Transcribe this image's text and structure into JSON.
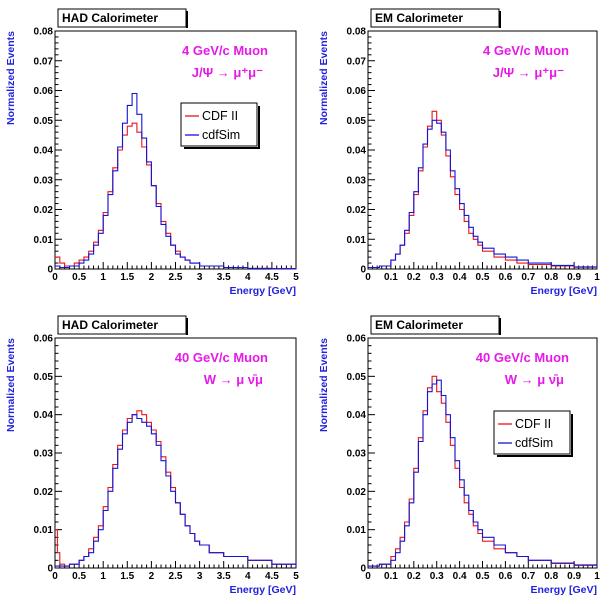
{
  "colors": {
    "cdf": "#e8141c",
    "sim": "#1414d8",
    "annotation": "#e818e8",
    "axis_title": "#2222dd",
    "axis": "#000000"
  },
  "chart_data": [
    {
      "type": "line",
      "title": "HAD Calorimeter",
      "annotation_lines": [
        "4 GeV/c Muon",
        "J/Ψ → μ⁺μ⁻"
      ],
      "xlabel": "Energy [GeV]",
      "ylabel": "Normalized Events",
      "xlim": [
        0,
        5
      ],
      "ylim": [
        0,
        0.08
      ],
      "xticks": [
        0,
        0.5,
        1,
        1.5,
        2,
        2.5,
        3,
        3.5,
        4,
        4.5,
        5
      ],
      "xtick_labels": [
        "0",
        "0.5",
        "1",
        "1.5",
        "2",
        "2.5",
        "3",
        "3.5",
        "4",
        "4.5",
        "5"
      ],
      "yticks": [
        0,
        0.01,
        0.02,
        0.03,
        0.04,
        0.05,
        0.06,
        0.07,
        0.08
      ],
      "ytick_labels": [
        "0",
        "0.01",
        "0.02",
        "0.03",
        "0.04",
        "0.05",
        "0.06",
        "0.07",
        "0.08"
      ],
      "legend": {
        "position": "right",
        "entries": [
          "CDF II",
          "cdfSim"
        ]
      },
      "grid": false,
      "series": [
        {
          "name": "CDF II",
          "x": [
            0,
            0.1,
            0.2,
            0.3,
            0.4,
            0.5,
            0.6,
            0.7,
            0.8,
            0.9,
            1.0,
            1.1,
            1.2,
            1.3,
            1.4,
            1.5,
            1.6,
            1.7,
            1.8,
            1.9,
            2.0,
            2.1,
            2.2,
            2.3,
            2.4,
            2.5,
            2.6,
            2.7,
            2.8,
            2.9,
            3.0,
            3.2,
            3.5,
            4.0,
            4.5,
            5.0
          ],
          "y": [
            0.004,
            0.002,
            0.001,
            0.001,
            0.002,
            0.003,
            0.004,
            0.006,
            0.009,
            0.013,
            0.019,
            0.026,
            0.034,
            0.04,
            0.045,
            0.048,
            0.049,
            0.046,
            0.041,
            0.035,
            0.028,
            0.022,
            0.016,
            0.012,
            0.008,
            0.006,
            0.004,
            0.003,
            0.002,
            0.002,
            0.001,
            0.001,
            0.0005,
            0.0002,
            0.0001,
            0
          ]
        },
        {
          "name": "cdfSim",
          "x": [
            0,
            0.1,
            0.2,
            0.3,
            0.4,
            0.5,
            0.6,
            0.7,
            0.8,
            0.9,
            1.0,
            1.1,
            1.2,
            1.3,
            1.4,
            1.5,
            1.6,
            1.7,
            1.8,
            1.9,
            2.0,
            2.1,
            2.2,
            2.3,
            2.4,
            2.5,
            2.6,
            2.7,
            2.8,
            2.9,
            3.0,
            3.2,
            3.5,
            4.0,
            4.5,
            5.0
          ],
          "y": [
            0.001,
            0.0005,
            0.0005,
            0.001,
            0.001,
            0.002,
            0.003,
            0.005,
            0.008,
            0.012,
            0.018,
            0.025,
            0.033,
            0.041,
            0.049,
            0.055,
            0.059,
            0.052,
            0.044,
            0.036,
            0.028,
            0.021,
            0.015,
            0.011,
            0.008,
            0.005,
            0.004,
            0.003,
            0.002,
            0.002,
            0.001,
            0.001,
            0.0005,
            0.0002,
            0.0001,
            0
          ]
        }
      ]
    },
    {
      "type": "line",
      "title": "EM Calorimeter",
      "annotation_lines": [
        "4 GeV/c Muon",
        "J/Ψ → μ⁺μ⁻"
      ],
      "xlabel": "Energy [GeV]",
      "ylabel": "Normalized Events",
      "xlim": [
        0,
        1
      ],
      "ylim": [
        0,
        0.08
      ],
      "xticks": [
        0,
        0.1,
        0.2,
        0.3,
        0.4,
        0.5,
        0.6,
        0.7,
        0.8,
        0.9,
        1
      ],
      "xtick_labels": [
        "0",
        "0.1",
        "0.2",
        "0.3",
        "0.4",
        "0.5",
        "0.6",
        "0.7",
        "0.8",
        "0.9",
        "1"
      ],
      "yticks": [
        0,
        0.01,
        0.02,
        0.03,
        0.04,
        0.05,
        0.06,
        0.07,
        0.08
      ],
      "ytick_labels": [
        "0",
        "0.01",
        "0.02",
        "0.03",
        "0.04",
        "0.05",
        "0.06",
        "0.07",
        "0.08"
      ],
      "grid": false,
      "series": [
        {
          "name": "CDF II",
          "x": [
            0,
            0.05,
            0.1,
            0.12,
            0.14,
            0.16,
            0.18,
            0.2,
            0.22,
            0.24,
            0.26,
            0.28,
            0.3,
            0.32,
            0.34,
            0.36,
            0.38,
            0.4,
            0.42,
            0.44,
            0.46,
            0.48,
            0.5,
            0.55,
            0.6,
            0.65,
            0.7,
            0.8,
            0.9,
            1.0
          ],
          "y": [
            0.0005,
            0.001,
            0.003,
            0.005,
            0.008,
            0.012,
            0.018,
            0.025,
            0.033,
            0.041,
            0.048,
            0.053,
            0.05,
            0.045,
            0.038,
            0.031,
            0.025,
            0.02,
            0.016,
            0.012,
            0.01,
            0.008,
            0.006,
            0.004,
            0.003,
            0.002,
            0.0015,
            0.001,
            0.0006,
            0.0003
          ]
        },
        {
          "name": "cdfSim",
          "x": [
            0,
            0.05,
            0.1,
            0.12,
            0.14,
            0.16,
            0.18,
            0.2,
            0.22,
            0.24,
            0.26,
            0.28,
            0.3,
            0.32,
            0.34,
            0.36,
            0.38,
            0.4,
            0.42,
            0.44,
            0.46,
            0.48,
            0.5,
            0.55,
            0.6,
            0.65,
            0.7,
            0.8,
            0.9,
            1.0
          ],
          "y": [
            0.0005,
            0.001,
            0.003,
            0.005,
            0.008,
            0.013,
            0.019,
            0.026,
            0.034,
            0.042,
            0.047,
            0.05,
            0.049,
            0.046,
            0.04,
            0.033,
            0.027,
            0.022,
            0.018,
            0.014,
            0.011,
            0.009,
            0.007,
            0.005,
            0.004,
            0.003,
            0.002,
            0.0012,
            0.0007,
            0.0004
          ]
        }
      ]
    },
    {
      "type": "line",
      "title": "HAD Calorimeter",
      "annotation_lines": [
        "40 GeV/c Muon",
        "W → μ ν̄μ"
      ],
      "xlabel": "Energy [GeV]",
      "ylabel": "Normalized Events",
      "xlim": [
        0,
        5
      ],
      "ylim": [
        0,
        0.06
      ],
      "xticks": [
        0,
        0.5,
        1,
        1.5,
        2,
        2.5,
        3,
        3.5,
        4,
        4.5,
        5
      ],
      "xtick_labels": [
        "0",
        "0.5",
        "1",
        "1.5",
        "2",
        "2.5",
        "3",
        "3.5",
        "4",
        "4.5",
        "5"
      ],
      "yticks": [
        0,
        0.01,
        0.02,
        0.03,
        0.04,
        0.05,
        0.06
      ],
      "ytick_labels": [
        "0",
        "0.01",
        "0.02",
        "0.03",
        "0.04",
        "0.05",
        "0.06"
      ],
      "grid": false,
      "series": [
        {
          "name": "CDF II",
          "x": [
            0,
            0.05,
            0.1,
            0.2,
            0.3,
            0.4,
            0.5,
            0.6,
            0.7,
            0.8,
            0.9,
            1.0,
            1.1,
            1.2,
            1.3,
            1.4,
            1.5,
            1.6,
            1.7,
            1.8,
            1.9,
            2.0,
            2.1,
            2.2,
            2.3,
            2.4,
            2.5,
            2.6,
            2.7,
            2.8,
            2.9,
            3.0,
            3.2,
            3.5,
            4.0,
            4.5,
            5.0
          ],
          "y": [
            0.01,
            0.004,
            0.001,
            0.0005,
            0.001,
            0.001,
            0.002,
            0.003,
            0.005,
            0.008,
            0.011,
            0.016,
            0.021,
            0.027,
            0.032,
            0.036,
            0.039,
            0.04,
            0.041,
            0.04,
            0.038,
            0.036,
            0.033,
            0.029,
            0.025,
            0.021,
            0.017,
            0.014,
            0.011,
            0.009,
            0.007,
            0.006,
            0.004,
            0.003,
            0.002,
            0.001,
            0.0005
          ]
        },
        {
          "name": "cdfSim",
          "x": [
            0,
            0.05,
            0.1,
            0.2,
            0.3,
            0.4,
            0.5,
            0.6,
            0.7,
            0.8,
            0.9,
            1.0,
            1.1,
            1.2,
            1.3,
            1.4,
            1.5,
            1.6,
            1.7,
            1.8,
            1.9,
            2.0,
            2.1,
            2.2,
            2.3,
            2.4,
            2.5,
            2.6,
            2.7,
            2.8,
            2.9,
            3.0,
            3.2,
            3.5,
            4.0,
            4.5,
            5.0
          ],
          "y": [
            0.0005,
            0.0005,
            0.0005,
            0.0005,
            0.001,
            0.001,
            0.002,
            0.003,
            0.004,
            0.007,
            0.01,
            0.015,
            0.02,
            0.026,
            0.031,
            0.035,
            0.038,
            0.04,
            0.039,
            0.038,
            0.037,
            0.035,
            0.032,
            0.028,
            0.024,
            0.02,
            0.017,
            0.014,
            0.011,
            0.009,
            0.007,
            0.006,
            0.004,
            0.003,
            0.002,
            0.001,
            0.0005
          ]
        }
      ]
    },
    {
      "type": "line",
      "title": "EM Calorimeter",
      "annotation_lines": [
        "40 GeV/c Muon",
        "W → μ ν̄μ"
      ],
      "xlabel": "Energy [GeV]",
      "ylabel": "Normalized Events",
      "xlim": [
        0,
        1
      ],
      "ylim": [
        0,
        0.06
      ],
      "xticks": [
        0,
        0.1,
        0.2,
        0.3,
        0.4,
        0.5,
        0.6,
        0.7,
        0.8,
        0.9,
        1
      ],
      "xtick_labels": [
        "0",
        "0.1",
        "0.2",
        "0.3",
        "0.4",
        "0.5",
        "0.6",
        "0.7",
        "0.8",
        "0.9",
        "1"
      ],
      "yticks": [
        0,
        0.01,
        0.02,
        0.03,
        0.04,
        0.05,
        0.06
      ],
      "ytick_labels": [
        "0",
        "0.01",
        "0.02",
        "0.03",
        "0.04",
        "0.05",
        "0.06"
      ],
      "legend": {
        "position": "right",
        "entries": [
          "CDF II",
          "cdfSim"
        ]
      },
      "grid": false,
      "series": [
        {
          "name": "CDF II",
          "x": [
            0,
            0.05,
            0.1,
            0.12,
            0.14,
            0.16,
            0.18,
            0.2,
            0.22,
            0.24,
            0.26,
            0.28,
            0.3,
            0.32,
            0.34,
            0.36,
            0.38,
            0.4,
            0.42,
            0.44,
            0.46,
            0.48,
            0.5,
            0.55,
            0.6,
            0.65,
            0.7,
            0.8,
            0.9,
            1.0
          ],
          "y": [
            0.0005,
            0.001,
            0.003,
            0.005,
            0.008,
            0.012,
            0.018,
            0.026,
            0.034,
            0.041,
            0.047,
            0.05,
            0.046,
            0.043,
            0.038,
            0.032,
            0.026,
            0.021,
            0.017,
            0.014,
            0.011,
            0.009,
            0.007,
            0.005,
            0.004,
            0.003,
            0.002,
            0.0012,
            0.0007,
            0.0004
          ]
        },
        {
          "name": "cdfSim",
          "x": [
            0,
            0.05,
            0.1,
            0.12,
            0.14,
            0.16,
            0.18,
            0.2,
            0.22,
            0.24,
            0.26,
            0.28,
            0.3,
            0.32,
            0.34,
            0.36,
            0.38,
            0.4,
            0.42,
            0.44,
            0.46,
            0.48,
            0.5,
            0.55,
            0.6,
            0.65,
            0.7,
            0.8,
            0.9,
            1.0
          ],
          "y": [
            0.0005,
            0.001,
            0.002,
            0.004,
            0.007,
            0.011,
            0.017,
            0.025,
            0.033,
            0.04,
            0.046,
            0.048,
            0.049,
            0.045,
            0.04,
            0.034,
            0.028,
            0.023,
            0.019,
            0.015,
            0.012,
            0.01,
            0.008,
            0.006,
            0.004,
            0.003,
            0.002,
            0.0013,
            0.0008,
            0.0004
          ]
        }
      ]
    }
  ]
}
